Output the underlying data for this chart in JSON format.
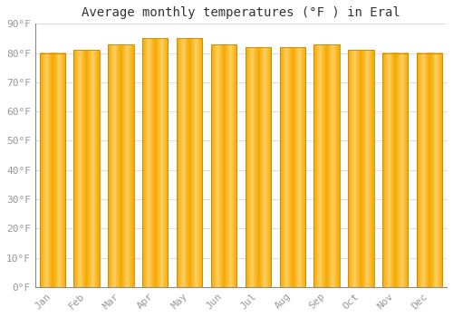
{
  "title": "Average monthly temperatures (°F ) in Eral",
  "months": [
    "Jan",
    "Feb",
    "Mar",
    "Apr",
    "May",
    "Jun",
    "Jul",
    "Aug",
    "Sep",
    "Oct",
    "Nov",
    "Dec"
  ],
  "values": [
    80,
    81,
    83,
    85,
    85,
    83,
    82,
    82,
    83,
    81,
    80,
    80
  ],
  "ylim": [
    0,
    90
  ],
  "yticks": [
    0,
    10,
    20,
    30,
    40,
    50,
    60,
    70,
    80,
    90
  ],
  "ytick_labels": [
    "0°F",
    "10°F",
    "20°F",
    "30°F",
    "40°F",
    "50°F",
    "60°F",
    "70°F",
    "80°F",
    "90°F"
  ],
  "bar_color_center": "#FFD060",
  "bar_color_edge": "#F5A800",
  "bar_edge_color": "#CC8800",
  "background_color": "#FFFFFF",
  "grid_color": "#DDDDDD",
  "title_fontsize": 10,
  "tick_fontsize": 8,
  "tick_color": "#999999",
  "bar_width": 0.75,
  "figsize": [
    5.0,
    3.5
  ],
  "dpi": 100
}
